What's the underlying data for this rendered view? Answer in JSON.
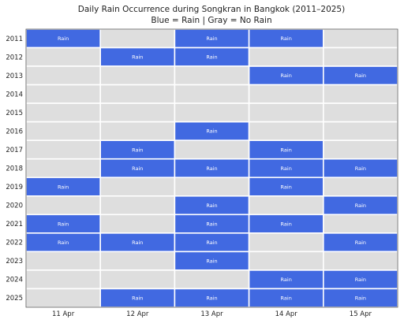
{
  "chart_data": {
    "type": "heatmap",
    "title": "Daily Rain Occurrence during Songkran in Bangkok (2011–2025)",
    "subtitle": "Blue = Rain | Gray = No Rain",
    "x_categories": [
      "11 Apr",
      "12 Apr",
      "13 Apr",
      "14 Apr",
      "15 Apr"
    ],
    "y_categories": [
      "2011",
      "2012",
      "2013",
      "2014",
      "2015",
      "2016",
      "2017",
      "2018",
      "2019",
      "2020",
      "2021",
      "2022",
      "2023",
      "2024",
      "2025"
    ],
    "cell_label": "Rain",
    "values": [
      [
        1,
        0,
        1,
        1,
        0
      ],
      [
        0,
        1,
        1,
        0,
        0
      ],
      [
        0,
        0,
        0,
        1,
        1
      ],
      [
        0,
        0,
        0,
        0,
        0
      ],
      [
        0,
        0,
        0,
        0,
        0
      ],
      [
        0,
        0,
        1,
        0,
        0
      ],
      [
        0,
        1,
        0,
        1,
        0
      ],
      [
        0,
        1,
        1,
        1,
        1
      ],
      [
        1,
        0,
        0,
        1,
        0
      ],
      [
        0,
        0,
        1,
        0,
        1
      ],
      [
        1,
        0,
        1,
        1,
        0
      ],
      [
        1,
        1,
        1,
        0,
        1
      ],
      [
        0,
        0,
        1,
        0,
        0
      ],
      [
        0,
        0,
        0,
        1,
        1
      ],
      [
        0,
        1,
        1,
        1,
        1
      ]
    ],
    "colors": {
      "rain": "#4169e1",
      "no_rain": "#dedede",
      "grid": "#ffffff"
    }
  }
}
